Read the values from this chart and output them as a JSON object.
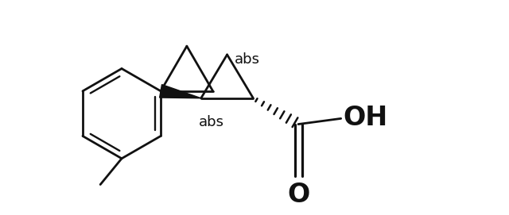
{
  "bg_color": "#ffffff",
  "line_color": "#111111",
  "line_width": 2.0,
  "abs_fontsize": 13,
  "oh_fontsize": 24,
  "o_fontsize": 24,
  "figsize": [
    6.4,
    2.71
  ],
  "dpi": 100,
  "xlim": [
    0.0,
    10.0
  ],
  "ylim": [
    0.0,
    4.5
  ]
}
